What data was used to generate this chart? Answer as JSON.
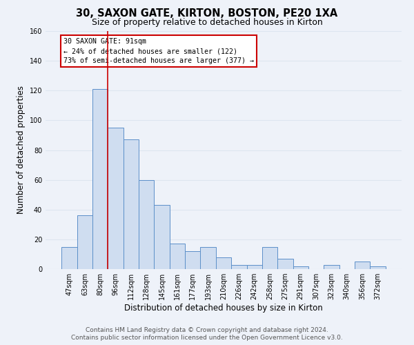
{
  "title": "30, SAXON GATE, KIRTON, BOSTON, PE20 1XA",
  "subtitle": "Size of property relative to detached houses in Kirton",
  "xlabel": "Distribution of detached houses by size in Kirton",
  "ylabel": "Number of detached properties",
  "bar_labels": [
    "47sqm",
    "63sqm",
    "80sqm",
    "96sqm",
    "112sqm",
    "128sqm",
    "145sqm",
    "161sqm",
    "177sqm",
    "193sqm",
    "210sqm",
    "226sqm",
    "242sqm",
    "258sqm",
    "275sqm",
    "291sqm",
    "307sqm",
    "323sqm",
    "340sqm",
    "356sqm",
    "372sqm"
  ],
  "bar_values": [
    15,
    36,
    121,
    95,
    87,
    60,
    43,
    17,
    12,
    15,
    8,
    3,
    3,
    15,
    7,
    2,
    0,
    3,
    0,
    5,
    2
  ],
  "bar_color": "#cfddf0",
  "bar_edge_color": "#5b8fc9",
  "vline_x": 2.5,
  "vline_color": "#cc0000",
  "annotation_lines": [
    "30 SAXON GATE: 91sqm",
    "← 24% of detached houses are smaller (122)",
    "73% of semi-detached houses are larger (377) →"
  ],
  "ylim": [
    0,
    160
  ],
  "yticks": [
    0,
    20,
    40,
    60,
    80,
    100,
    120,
    140,
    160
  ],
  "footer_line1": "Contains HM Land Registry data © Crown copyright and database right 2024.",
  "footer_line2": "Contains public sector information licensed under the Open Government Licence v3.0.",
  "bg_color": "#eef2f9",
  "grid_color": "#dde5f0",
  "title_fontsize": 10.5,
  "subtitle_fontsize": 9,
  "axis_label_fontsize": 8.5,
  "tick_fontsize": 7,
  "footer_fontsize": 6.5
}
